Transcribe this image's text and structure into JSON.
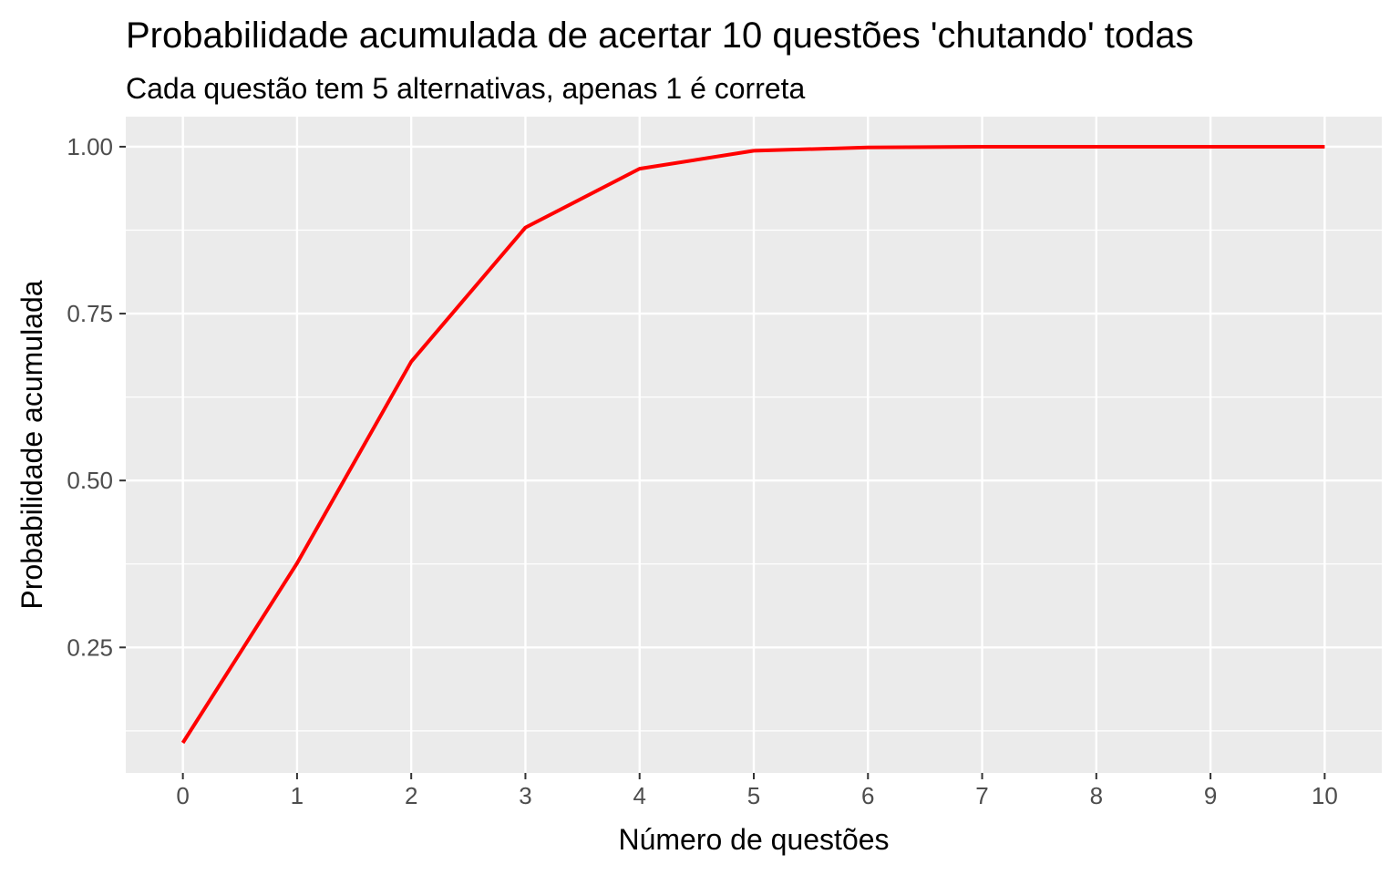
{
  "chart_data": {
    "type": "line",
    "title": "Probabilidade acumulada de acertar 10 questões 'chutando' todas",
    "subtitle": "Cada questão tem 5 alternativas, apenas 1 é correta",
    "xlabel": "Número de questões",
    "ylabel": "Probabilidade acumulada",
    "x": [
      0,
      1,
      2,
      3,
      4,
      5,
      6,
      7,
      8,
      9,
      10
    ],
    "y": [
      0.107,
      0.376,
      0.678,
      0.879,
      0.967,
      0.994,
      0.999,
      1.0,
      1.0,
      1.0,
      1.0
    ],
    "xlim": [
      -0.5,
      10.5
    ],
    "ylim": [
      0.062,
      1.045
    ],
    "x_ticks": [
      0,
      1,
      2,
      3,
      4,
      5,
      6,
      7,
      8,
      9,
      10
    ],
    "x_tick_labels": [
      "0",
      "1",
      "2",
      "3",
      "4",
      "5",
      "6",
      "7",
      "8",
      "9",
      "10"
    ],
    "y_ticks": [
      0.25,
      0.5,
      0.75,
      1.0
    ],
    "y_tick_labels": [
      "0.25",
      "0.50",
      "0.75",
      "1.00"
    ],
    "grid": true,
    "legend": "none",
    "colors": {
      "line": "#FF0000",
      "panel": "#EBEBEB",
      "grid": "#FFFFFF",
      "tick_text": "#4D4D4D",
      "tick_mark": "#333333"
    }
  }
}
